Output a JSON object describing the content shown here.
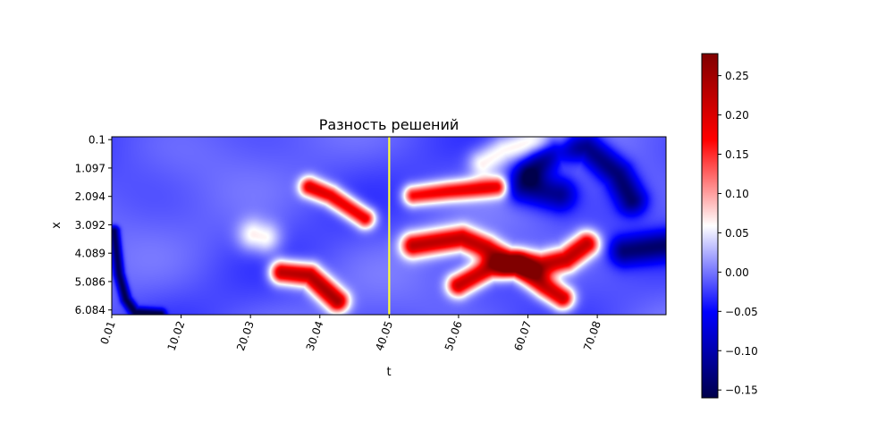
{
  "chart_data": {
    "type": "heatmap",
    "title": "Разность решений",
    "xlabel": "t",
    "ylabel": "x",
    "x_ticks": [
      "0.01",
      "10.02",
      "20.03",
      "30.04",
      "40.05",
      "50.06",
      "60.07",
      "70.08"
    ],
    "y_ticks": [
      "0.1",
      "1.097",
      "2.094",
      "3.092",
      "4.089",
      "5.086",
      "6.084"
    ],
    "xlim": [
      0.01,
      80.0
    ],
    "ylim": [
      6.25,
      0.0
    ],
    "colormap": "seismic",
    "colorbar": {
      "range": [
        -0.16,
        0.278
      ],
      "ticks": [
        "0.25",
        "0.20",
        "0.15",
        "0.10",
        "0.05",
        "0.00",
        "−0.05",
        "−0.10",
        "−0.15"
      ],
      "tick_values": [
        0.25,
        0.2,
        0.15,
        0.1,
        0.05,
        0.0,
        -0.05,
        -0.1,
        -0.15
      ]
    },
    "marker_line": {
      "t": 40.05,
      "color": "#ffff33"
    },
    "blobs": [
      {
        "sign": "pos",
        "value": 0.2,
        "points": [
          [
            28.5,
            1.75
          ],
          [
            31.5,
            2.05
          ],
          [
            36.5,
            2.85
          ]
        ],
        "width": 0.25
      },
      {
        "sign": "pos",
        "value": 0.24,
        "points": [
          [
            24.5,
            4.75
          ],
          [
            28.5,
            4.85
          ],
          [
            32.5,
            5.75
          ]
        ],
        "width": 0.28
      },
      {
        "sign": "pos",
        "value": 0.18,
        "points": [
          [
            43.5,
            2.05
          ],
          [
            48.5,
            1.9
          ],
          [
            55.5,
            1.75
          ]
        ],
        "width": 0.25
      },
      {
        "sign": "pos",
        "value": 0.22,
        "points": [
          [
            43.5,
            3.8
          ],
          [
            50.5,
            3.55
          ],
          [
            54.0,
            3.9
          ],
          [
            57.0,
            4.35
          ],
          [
            62.0,
            4.5
          ],
          [
            65.5,
            4.3
          ],
          [
            68.5,
            3.75
          ]
        ],
        "width": 0.3
      },
      {
        "sign": "pos",
        "value": 0.22,
        "points": [
          [
            50.0,
            5.2
          ],
          [
            54.5,
            4.6
          ],
          [
            58.5,
            4.5
          ],
          [
            62.5,
            5.25
          ],
          [
            65.0,
            5.65
          ]
        ],
        "width": 0.28
      },
      {
        "sign": "pos",
        "value": 0.07,
        "points": [
          [
            20.5,
            3.45
          ],
          [
            22.0,
            3.55
          ]
        ],
        "width": 0.4
      },
      {
        "sign": "pos",
        "value": 0.07,
        "points": [
          [
            53.5,
            0.9
          ],
          [
            56.5,
            0.45
          ],
          [
            60.5,
            0.2
          ],
          [
            64.5,
            0.2
          ]
        ],
        "width": 0.35
      },
      {
        "sign": "neg",
        "value": -0.14,
        "points": [
          [
            60.5,
            1.2
          ],
          [
            64.0,
            0.4
          ],
          [
            68.5,
            0.35
          ],
          [
            73.0,
            1.3
          ],
          [
            75.0,
            2.2
          ]
        ],
        "width": 0.35
      },
      {
        "sign": "neg",
        "value": -0.12,
        "points": [
          [
            59.5,
            1.75
          ],
          [
            64.5,
            2.0
          ]
        ],
        "width": 0.4
      },
      {
        "sign": "neg",
        "value": -0.13,
        "points": [
          [
            74.0,
            4.0
          ],
          [
            80.0,
            3.8
          ]
        ],
        "width": 0.35
      },
      {
        "sign": "neg",
        "value": -0.16,
        "points": [
          [
            0.3,
            3.3
          ],
          [
            1.0,
            4.8
          ],
          [
            2.0,
            5.7
          ],
          [
            3.3,
            6.15
          ],
          [
            7.0,
            6.22
          ]
        ],
        "width": 0.12
      }
    ]
  }
}
